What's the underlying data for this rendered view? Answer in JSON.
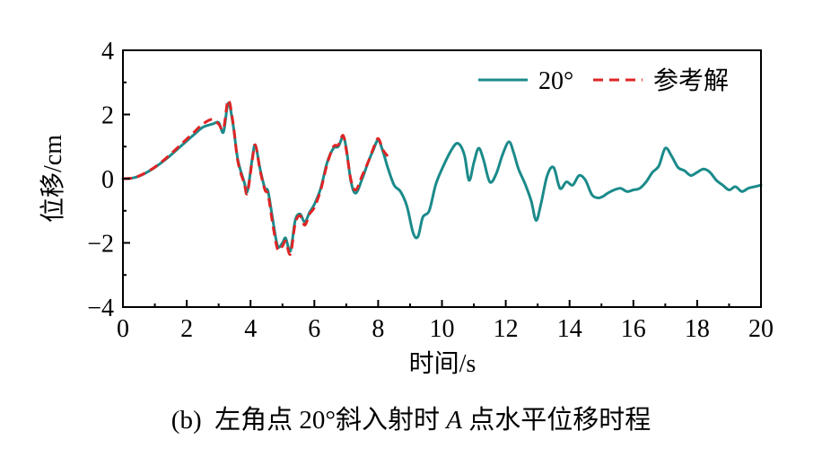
{
  "chart_data": {
    "type": "line",
    "title": "",
    "xlabel": "时间/s",
    "ylabel": "位移/cm",
    "xlim": [
      0,
      20
    ],
    "ylim": [
      -4,
      4
    ],
    "xticks": [
      "0",
      "2",
      "4",
      "6",
      "8",
      "10",
      "12",
      "14",
      "16",
      "18",
      "20"
    ],
    "yticks": [
      "−4",
      "−2",
      "0",
      "2",
      "4"
    ],
    "grid": false,
    "legend_position": "top-right",
    "series": [
      {
        "name": "20°",
        "color": "#1b8a8a",
        "style": "solid",
        "x": [
          0,
          0.3,
          0.6,
          1.0,
          1.4,
          1.8,
          2.2,
          2.5,
          2.8,
          3.0,
          3.15,
          3.3,
          3.45,
          3.6,
          3.8,
          3.9,
          4.05,
          4.15,
          4.3,
          4.45,
          4.55,
          4.7,
          4.85,
          5.0,
          5.1,
          5.25,
          5.4,
          5.55,
          5.7,
          5.85,
          6.0,
          6.2,
          6.4,
          6.6,
          6.75,
          6.9,
          7.0,
          7.15,
          7.3,
          7.5,
          7.7,
          7.85,
          8.0,
          8.15,
          8.3,
          8.5,
          8.7,
          8.9,
          9.1,
          9.25,
          9.4,
          9.6,
          9.8,
          10.0,
          10.3,
          10.5,
          10.7,
          10.85,
          11.0,
          11.15,
          11.3,
          11.5,
          11.7,
          11.9,
          12.1,
          12.25,
          12.4,
          12.6,
          12.8,
          12.95,
          13.1,
          13.3,
          13.5,
          13.7,
          13.9,
          14.1,
          14.3,
          14.5,
          14.7,
          14.9,
          15.05,
          15.2,
          15.4,
          15.6,
          15.8,
          16.0,
          16.2,
          16.4,
          16.6,
          16.8,
          17.0,
          17.2,
          17.4,
          17.6,
          17.8,
          18.0,
          18.2,
          18.4,
          18.6,
          18.8,
          19.0,
          19.2,
          19.4,
          19.6,
          19.8,
          20.0
        ],
        "values": [
          0,
          0.02,
          0.12,
          0.35,
          0.65,
          1.0,
          1.35,
          1.6,
          1.7,
          1.75,
          1.45,
          2.35,
          1.7,
          0.6,
          -0.1,
          -0.4,
          0.6,
          1.05,
          0.3,
          -0.3,
          -0.4,
          -1.3,
          -2.1,
          -2.0,
          -1.85,
          -2.25,
          -1.3,
          -1.1,
          -1.35,
          -1.05,
          -0.8,
          -0.3,
          0.5,
          0.95,
          1.0,
          1.3,
          0.95,
          -0.1,
          -0.45,
          0.0,
          0.55,
          0.9,
          1.2,
          0.85,
          0.35,
          -0.2,
          -0.4,
          -0.85,
          -1.7,
          -1.8,
          -1.2,
          -1.0,
          -0.2,
          0.3,
          0.9,
          1.1,
          0.75,
          -0.05,
          0.5,
          0.95,
          0.6,
          -0.1,
          0.15,
          0.75,
          1.15,
          0.8,
          0.3,
          -0.15,
          -0.7,
          -1.3,
          -0.8,
          0.1,
          0.35,
          -0.3,
          -0.1,
          -0.2,
          0.1,
          -0.05,
          -0.5,
          -0.6,
          -0.55,
          -0.45,
          -0.35,
          -0.3,
          -0.4,
          -0.35,
          -0.3,
          -0.1,
          0.2,
          0.4,
          0.95,
          0.7,
          0.35,
          0.25,
          0.1,
          0.2,
          0.3,
          0.2,
          -0.05,
          -0.2,
          -0.35,
          -0.25,
          -0.4,
          -0.3,
          -0.25,
          -0.2
        ]
      },
      {
        "name": "参考解",
        "color": "#e02424",
        "style": "dashed",
        "x": [
          0,
          0.3,
          0.6,
          1.0,
          1.4,
          1.8,
          2.2,
          2.5,
          2.8,
          3.0,
          3.15,
          3.3,
          3.45,
          3.6,
          3.8,
          3.9,
          4.05,
          4.15,
          4.3,
          4.45,
          4.55,
          4.7,
          4.85,
          5.0,
          5.1,
          5.25,
          5.4,
          5.55,
          5.7,
          5.85,
          6.0,
          6.2,
          6.4,
          6.6,
          6.75,
          6.9,
          7.0,
          7.15,
          7.3,
          7.5,
          7.7,
          7.85,
          8.0,
          8.15,
          8.3
        ],
        "values": [
          0,
          0.02,
          0.13,
          0.36,
          0.68,
          1.05,
          1.42,
          1.7,
          1.85,
          1.7,
          1.55,
          2.45,
          1.75,
          0.55,
          -0.15,
          -0.45,
          0.55,
          1.05,
          0.25,
          -0.35,
          -0.5,
          -1.45,
          -2.2,
          -2.1,
          -1.95,
          -2.35,
          -1.4,
          -1.15,
          -1.45,
          -1.1,
          -0.9,
          -0.35,
          0.45,
          1.0,
          1.05,
          1.35,
          0.9,
          -0.05,
          -0.35,
          0.1,
          0.55,
          0.95,
          1.25,
          0.9,
          0.7
        ]
      }
    ]
  },
  "caption": "(b)  左角点 20°斜入射时 A 点水平位移时程",
  "caption_parts": {
    "prefix": "(b)  左角点 20°斜入射时 ",
    "point": "A",
    "suffix": " 点水平位移时程"
  }
}
